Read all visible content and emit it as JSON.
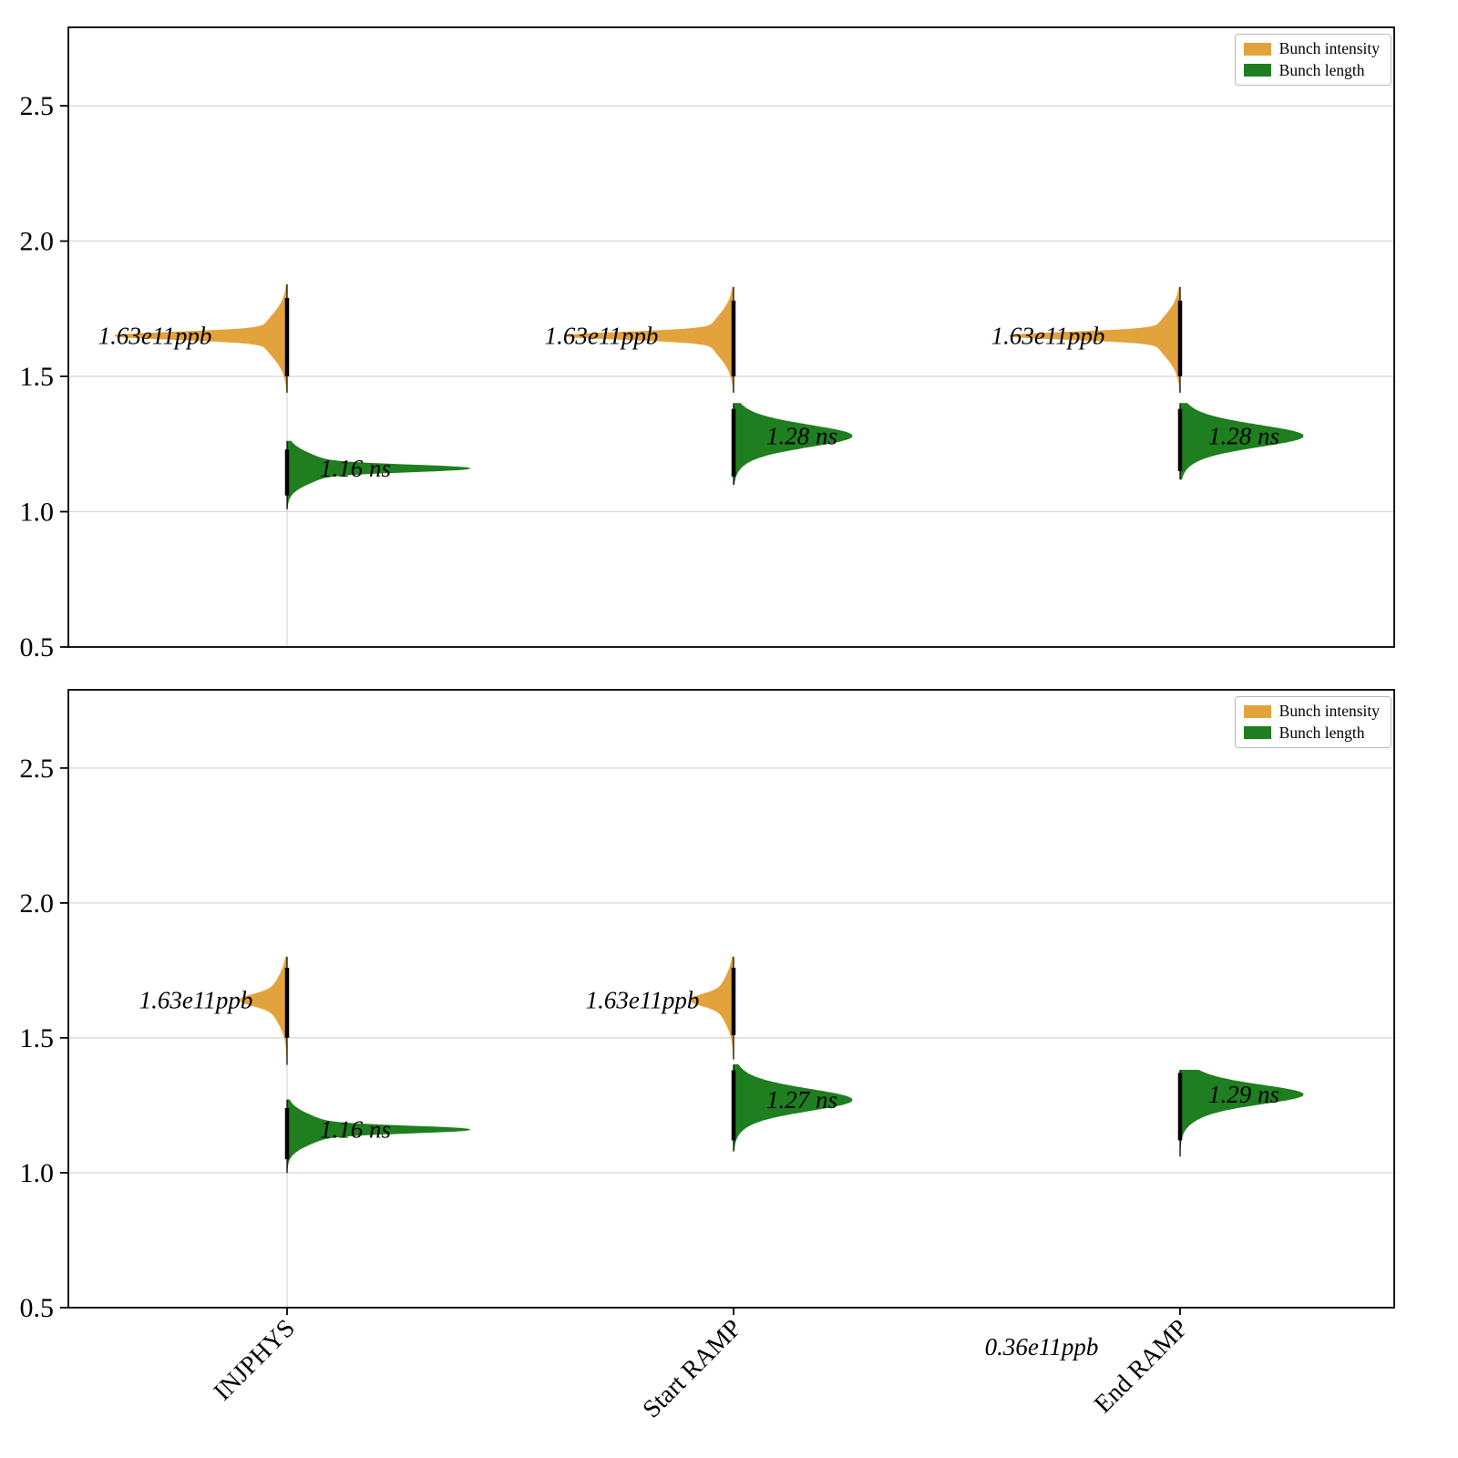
{
  "legend": {
    "position": "upper right",
    "items": [
      {
        "label": "Bunch intensity",
        "color": "#E3A33C"
      },
      {
        "label": "Bunch length",
        "color": "#1F7E1F"
      }
    ]
  },
  "chart_data": {
    "type": "violin",
    "title": "",
    "xlabel": "",
    "ylabel": "",
    "grid": "horizontal",
    "ylim": [
      0.5,
      2.79
    ],
    "yticks": [
      0.5,
      1.0,
      1.5,
      2.0,
      2.5
    ],
    "categories": [
      "INJPHYS",
      "Start RAMP",
      "End RAMP"
    ],
    "colors": {
      "intensity": "#E3A33C",
      "length": "#1F7E1F"
    },
    "series_names": [
      "Bunch intensity",
      "Bunch length"
    ],
    "center_guides": [
      {
        "panel": 0,
        "group": 0,
        "from": 1.84,
        "to": 0.5
      },
      {
        "panel": 1,
        "group": 0,
        "from": 1.8,
        "to": 0.5
      }
    ],
    "panels": [
      {
        "name": "top",
        "violins": [
          {
            "group": 0,
            "series": "intensity",
            "side": "left",
            "mu": 1.65,
            "lo": 1.44,
            "hi": 1.84,
            "max_w": 190,
            "s_narrow": 0.013,
            "s_broad": 0.07,
            "a_broad": 0.18,
            "bar": [
              1.5,
              1.79
            ],
            "annotation": {
              "text": "1.63e11ppb",
              "dx": -145
            }
          },
          {
            "group": 0,
            "series": "length",
            "side": "right",
            "mu": 1.16,
            "lo": 1.01,
            "hi": 1.26,
            "max_w": 200,
            "s_narrow": 0.012,
            "s_broad": 0.045,
            "a_broad": 0.35,
            "bar": [
              1.06,
              1.23
            ],
            "annotation": {
              "text": "1.16 ns",
              "dx": 75
            }
          },
          {
            "group": 1,
            "series": "intensity",
            "side": "left",
            "mu": 1.65,
            "lo": 1.44,
            "hi": 1.83,
            "max_w": 185,
            "s_narrow": 0.013,
            "s_broad": 0.07,
            "a_broad": 0.18,
            "bar": [
              1.5,
              1.78
            ],
            "annotation": {
              "text": "1.63e11ppb",
              "dx": -145
            }
          },
          {
            "group": 1,
            "series": "length",
            "side": "right",
            "mu": 1.28,
            "lo": 1.1,
            "hi": 1.4,
            "max_w": 130,
            "s_narrow": 0.035,
            "s_broad": 0.06,
            "a_broad": 0.7,
            "bar": [
              1.13,
              1.38
            ],
            "annotation": {
              "text": "1.28 ns",
              "dx": 75
            }
          },
          {
            "group": 2,
            "series": "intensity",
            "side": "left",
            "mu": 1.65,
            "lo": 1.44,
            "hi": 1.83,
            "max_w": 188,
            "s_narrow": 0.013,
            "s_broad": 0.07,
            "a_broad": 0.18,
            "bar": [
              1.5,
              1.78
            ],
            "annotation": {
              "text": "1.63e11ppb",
              "dx": -145
            }
          },
          {
            "group": 2,
            "series": "length",
            "side": "right",
            "mu": 1.28,
            "lo": 1.12,
            "hi": 1.4,
            "max_w": 135,
            "s_narrow": 0.035,
            "s_broad": 0.06,
            "a_broad": 0.7,
            "bar": [
              1.15,
              1.38
            ],
            "annotation": {
              "text": "1.28 ns",
              "dx": 70
            }
          }
        ],
        "extra_annotations": []
      },
      {
        "name": "bottom",
        "violins": [
          {
            "group": 0,
            "series": "intensity",
            "side": "left",
            "mu": 1.64,
            "lo": 1.4,
            "hi": 1.8,
            "max_w": 52,
            "s_narrow": 0.02,
            "s_broad": 0.07,
            "a_broad": 0.6,
            "bar": [
              1.5,
              1.76
            ],
            "annotation": {
              "text": "1.63e11ppb",
              "dx": -100
            }
          },
          {
            "group": 0,
            "series": "length",
            "side": "right",
            "mu": 1.16,
            "lo": 1.0,
            "hi": 1.27,
            "max_w": 200,
            "s_narrow": 0.012,
            "s_broad": 0.045,
            "a_broad": 0.35,
            "bar": [
              1.05,
              1.24
            ],
            "annotation": {
              "text": "1.16 ns",
              "dx": 75
            }
          },
          {
            "group": 1,
            "series": "intensity",
            "side": "left",
            "mu": 1.64,
            "lo": 1.42,
            "hi": 1.8,
            "max_w": 48,
            "s_narrow": 0.02,
            "s_broad": 0.07,
            "a_broad": 0.6,
            "bar": [
              1.51,
              1.76
            ],
            "annotation": {
              "text": "1.63e11ppb",
              "dx": -100
            }
          },
          {
            "group": 1,
            "series": "length",
            "side": "right",
            "mu": 1.27,
            "lo": 1.08,
            "hi": 1.4,
            "max_w": 130,
            "s_narrow": 0.035,
            "s_broad": 0.06,
            "a_broad": 0.7,
            "bar": [
              1.12,
              1.38
            ],
            "annotation": {
              "text": "1.27 ns",
              "dx": 75
            }
          },
          {
            "group": 2,
            "series": "length",
            "side": "right",
            "mu": 1.29,
            "lo": 1.06,
            "hi": 1.38,
            "max_w": 135,
            "s_narrow": 0.03,
            "s_broad": 0.06,
            "a_broad": 0.8,
            "bar": [
              1.12,
              1.37
            ],
            "annotation": {
              "text": "1.29 ns",
              "dx": 70
            }
          }
        ],
        "extra_annotations": [
          {
            "group": 2,
            "dx": -152,
            "value": 0.355,
            "text": "0.36e11ppb"
          }
        ]
      }
    ]
  }
}
